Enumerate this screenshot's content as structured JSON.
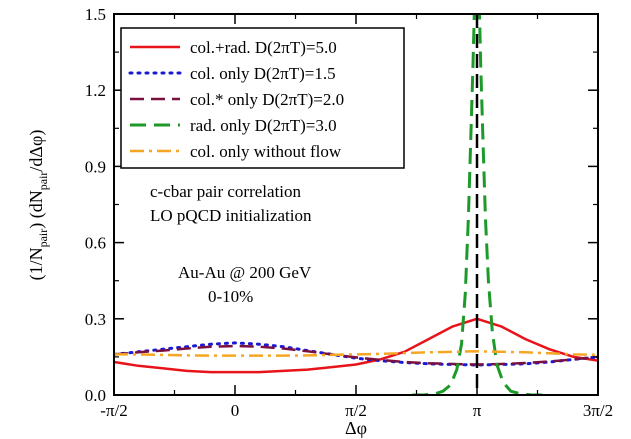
{
  "chart_data": {
    "type": "line",
    "title": "",
    "xlabel": "Δφ",
    "ylabel_main": "(1/N",
    "ylabel_sub1": "pair",
    "ylabel_mid": ") (dN",
    "ylabel_sub2": "pair",
    "ylabel_end": "/dΔφ)",
    "xlim": [
      -1.5708,
      4.7124
    ],
    "ylim": [
      0,
      1.5
    ],
    "xticks": [
      {
        "value": -1.5708,
        "label": "-π/2"
      },
      {
        "value": 0,
        "label": "0"
      },
      {
        "value": 1.5708,
        "label": "π/2"
      },
      {
        "value": 3.1416,
        "label": "π"
      },
      {
        "value": 4.7124,
        "label": "3π/2"
      }
    ],
    "yticks": [
      {
        "value": 0.0,
        "label": "0.0"
      },
      {
        "value": 0.3,
        "label": "0.3"
      },
      {
        "value": 0.6,
        "label": "0.6"
      },
      {
        "value": 0.9,
        "label": "0.9"
      },
      {
        "value": 1.2,
        "label": "1.2"
      },
      {
        "value": 1.5,
        "label": "1.5"
      }
    ],
    "grid": false,
    "legend_position": "top-left",
    "annotations": [
      "c-cbar pair correlation",
      "LO pQCD initialization",
      "Au-Au @ 200 GeV",
      "0-10%"
    ],
    "vline_x": 3.1416,
    "series": [
      {
        "name": "col.+rad. D(2πT)=5.0",
        "color": "#e8141b",
        "dash": "solid",
        "x": [
          -1.5708,
          -1.2566,
          -0.9425,
          -0.6283,
          -0.3142,
          0.0,
          0.3142,
          0.6283,
          0.9425,
          1.2566,
          1.5708,
          1.885,
          2.1991,
          2.5133,
          2.8274,
          3.1416,
          3.4558,
          3.7699,
          4.0841,
          4.3982,
          4.7124
        ],
        "y": [
          0.13,
          0.115,
          0.105,
          0.095,
          0.09,
          0.09,
          0.09,
          0.095,
          0.1,
          0.11,
          0.12,
          0.14,
          0.17,
          0.22,
          0.27,
          0.3,
          0.27,
          0.22,
          0.18,
          0.15,
          0.135
        ]
      },
      {
        "name": "col. only D(2πT)=1.5",
        "color": "#1a1ad6",
        "dash": "dot",
        "x": [
          -1.5708,
          -1.2566,
          -0.9425,
          -0.6283,
          -0.3142,
          0.0,
          0.3142,
          0.6283,
          0.9425,
          1.2566,
          1.5708,
          1.885,
          2.1991,
          2.5133,
          2.8274,
          3.1416,
          3.4558,
          3.7699,
          4.0841,
          4.3982,
          4.7124
        ],
        "y": [
          0.16,
          0.17,
          0.18,
          0.19,
          0.2,
          0.205,
          0.2,
          0.19,
          0.175,
          0.16,
          0.145,
          0.135,
          0.128,
          0.123,
          0.12,
          0.118,
          0.12,
          0.123,
          0.13,
          0.14,
          0.15
        ]
      },
      {
        "name": "col.* only D(2πT)=2.0",
        "color": "#7a1040",
        "dash": "longdash",
        "x": [
          -1.5708,
          -1.2566,
          -0.9425,
          -0.6283,
          -0.3142,
          0.0,
          0.3142,
          0.6283,
          0.9425,
          1.2566,
          1.5708,
          1.885,
          2.1991,
          2.5133,
          2.8274,
          3.1416,
          3.4558,
          3.7699,
          4.0841,
          4.3982,
          4.7124
        ],
        "y": [
          0.16,
          0.168,
          0.175,
          0.183,
          0.19,
          0.193,
          0.19,
          0.183,
          0.172,
          0.16,
          0.148,
          0.138,
          0.13,
          0.125,
          0.122,
          0.12,
          0.122,
          0.126,
          0.132,
          0.14,
          0.15
        ]
      },
      {
        "name": "rad. only D(2πT)=3.0",
        "color": "#1e9a2a",
        "dash": "dash",
        "x": [
          2.3,
          2.45,
          2.6,
          2.7,
          2.8,
          2.88,
          2.94,
          2.99,
          3.03,
          3.06,
          3.09,
          3.11,
          3.13,
          3.15,
          3.17,
          3.19,
          3.22,
          3.25,
          3.29,
          3.34,
          3.4,
          3.48,
          3.58,
          3.7,
          3.85,
          4.0
        ],
        "y": [
          0.0,
          0.0,
          0.005,
          0.015,
          0.04,
          0.1,
          0.2,
          0.4,
          0.7,
          1.0,
          1.3,
          1.55,
          1.6,
          1.6,
          1.55,
          1.3,
          1.0,
          0.7,
          0.45,
          0.25,
          0.12,
          0.05,
          0.015,
          0.005,
          0.0,
          0.0
        ]
      },
      {
        "name": "col. only without flow",
        "color": "#f5a623",
        "dash": "dashdot",
        "x": [
          -1.5708,
          -1.2566,
          -0.9425,
          -0.6283,
          -0.3142,
          0.0,
          0.3142,
          0.6283,
          0.9425,
          1.2566,
          1.5708,
          1.885,
          2.1991,
          2.5133,
          2.8274,
          3.1416,
          3.4558,
          3.7699,
          4.0841,
          4.3982,
          4.7124
        ],
        "y": [
          0.16,
          0.16,
          0.158,
          0.156,
          0.155,
          0.155,
          0.155,
          0.155,
          0.156,
          0.158,
          0.16,
          0.162,
          0.165,
          0.168,
          0.17,
          0.172,
          0.17,
          0.168,
          0.164,
          0.16,
          0.158
        ]
      }
    ]
  }
}
